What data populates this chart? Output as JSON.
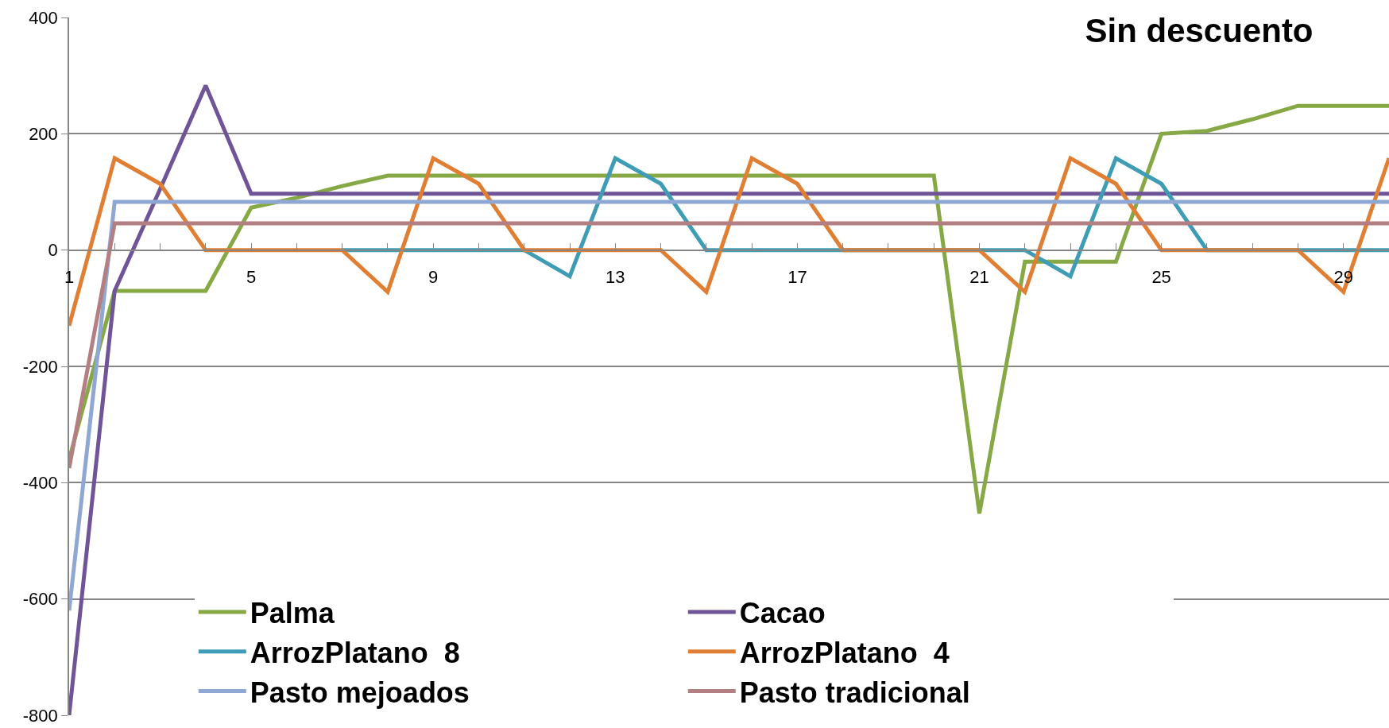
{
  "chart_data": {
    "type": "line",
    "title": "Sin descuento",
    "x": [
      1,
      2,
      3,
      4,
      5,
      6,
      7,
      8,
      9,
      10,
      11,
      12,
      13,
      14,
      15,
      16,
      17,
      18,
      19,
      20,
      21,
      22,
      23,
      24,
      25,
      26,
      27,
      28,
      29,
      30
    ],
    "series": [
      {
        "name": "Palma",
        "color": "#86a845",
        "values": [
          -360,
          -70,
          -70,
          -70,
          73,
          90,
          110,
          128,
          128,
          128,
          128,
          128,
          128,
          128,
          128,
          128,
          128,
          128,
          128,
          128,
          -453,
          -20,
          -20,
          -20,
          200,
          205,
          225,
          248,
          248,
          248
        ]
      },
      {
        "name": "Cacao",
        "color": "#6f5597",
        "values": [
          -800,
          -70,
          105,
          283,
          97,
          97,
          97,
          97,
          97,
          97,
          97,
          97,
          97,
          97,
          97,
          97,
          97,
          97,
          97,
          97,
          97,
          97,
          97,
          97,
          97,
          97,
          97,
          97,
          97,
          97
        ]
      },
      {
        "name": "ArrozPlatano  8",
        "color": "#3f9cb5",
        "values": [
          null,
          null,
          null,
          null,
          null,
          null,
          0,
          0,
          0,
          0,
          0,
          -45,
          158,
          114,
          0,
          0,
          0,
          0,
          0,
          0,
          0,
          0,
          -45,
          158,
          114,
          0,
          0,
          0,
          0,
          0
        ]
      },
      {
        "name": "ArrozPlatano  4",
        "color": "#e07f34",
        "values": [
          -130,
          158,
          114,
          0,
          0,
          0,
          0,
          -72,
          158,
          114,
          0,
          0,
          0,
          0,
          -72,
          158,
          114,
          0,
          0,
          0,
          0,
          -72,
          158,
          114,
          0,
          0,
          0,
          0,
          -72,
          158
        ]
      },
      {
        "name": "Pasto mejoados",
        "color": "#8fa8d3",
        "values": [
          -620,
          83,
          83,
          83,
          83,
          83,
          83,
          83,
          83,
          83,
          83,
          83,
          83,
          83,
          83,
          83,
          83,
          83,
          83,
          83,
          83,
          83,
          83,
          83,
          83,
          83,
          83,
          83,
          83,
          83
        ]
      },
      {
        "name": "Pasto tradicional",
        "color": "#b47f82",
        "values": [
          -375,
          46,
          46,
          46,
          46,
          46,
          46,
          46,
          46,
          46,
          46,
          46,
          46,
          46,
          46,
          46,
          46,
          46,
          46,
          46,
          46,
          46,
          46,
          46,
          46,
          46,
          46,
          46,
          46,
          46
        ]
      }
    ],
    "xlim": [
      1,
      30
    ],
    "xticks": [
      1,
      {
        "value": 2,
        "label": null
      },
      {
        "value": 3,
        "label": null
      },
      {
        "value": 4,
        "label": null
      },
      5,
      {
        "value": 6,
        "label": null
      },
      {
        "value": 7,
        "label": null
      },
      {
        "value": 8,
        "label": null
      },
      9,
      {
        "value": 10,
        "label": null
      },
      {
        "value": 11,
        "label": null
      },
      {
        "value": 12,
        "label": null
      },
      13,
      {
        "value": 14,
        "label": null
      },
      {
        "value": 15,
        "label": null
      },
      {
        "value": 16,
        "label": null
      },
      17,
      {
        "value": 18,
        "label": null
      },
      {
        "value": 19,
        "label": null
      },
      {
        "value": 20,
        "label": null
      },
      21,
      {
        "value": 22,
        "label": null
      },
      {
        "value": 23,
        "label": null
      },
      {
        "value": 24,
        "label": null
      },
      25,
      {
        "value": 26,
        "label": null
      },
      {
        "value": 27,
        "label": null
      },
      {
        "value": 28,
        "label": null
      },
      29
    ],
    "ylim": [
      -800,
      400
    ],
    "yticks": [
      -800,
      -600,
      -400,
      -200,
      0,
      200,
      400
    ],
    "grid": "y",
    "legend": "bottom",
    "line_style": "solid"
  }
}
